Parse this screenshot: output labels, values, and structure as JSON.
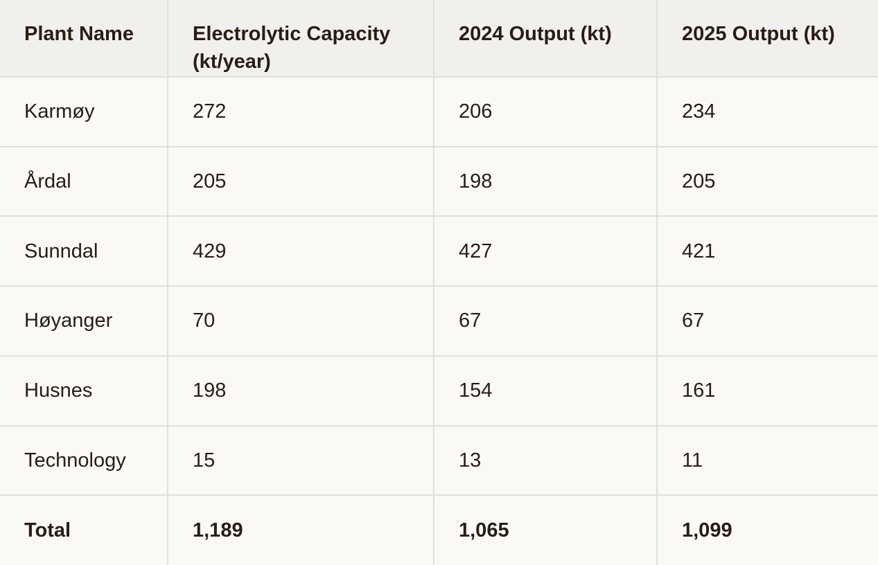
{
  "table": {
    "headers": [
      "Plant Name",
      "Electrolytic Capacity (kt/year)",
      "2024 Output (kt)",
      "2025 Output (kt)"
    ],
    "rows": [
      [
        "Karmøy",
        "272",
        "206",
        "234"
      ],
      [
        "Årdal",
        "205",
        "198",
        "205"
      ],
      [
        "Sunndal",
        "429",
        "427",
        "421"
      ],
      [
        "Høyanger",
        "70",
        "67",
        "67"
      ],
      [
        "Husnes",
        "198",
        "154",
        "161"
      ],
      [
        "Technology",
        "15",
        "13",
        "11"
      ]
    ],
    "total": [
      "Total",
      "1,189",
      "1,065",
      "1,099"
    ]
  }
}
